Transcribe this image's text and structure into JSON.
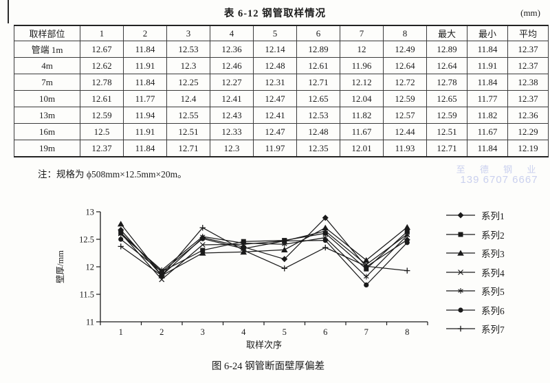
{
  "table": {
    "title": "表 6-12  钢管取样情况",
    "unit": "(mm)",
    "columns": [
      "取样部位",
      "1",
      "2",
      "3",
      "4",
      "5",
      "6",
      "7",
      "8",
      "最大",
      "最小",
      "平均"
    ],
    "rows": [
      {
        "label": "管端 1m",
        "values": [
          "12.67",
          "11.84",
          "12.53",
          "12.36",
          "12.14",
          "12.89",
          "12",
          "12.49",
          "12.89",
          "11.84",
          "12.37"
        ]
      },
      {
        "label": "4m",
        "values": [
          "12.62",
          "11.91",
          "12.3",
          "12.46",
          "12.48",
          "12.61",
          "11.96",
          "12.64",
          "12.64",
          "11.91",
          "12.37"
        ]
      },
      {
        "label": "7m",
        "values": [
          "12.78",
          "11.84",
          "12.25",
          "12.27",
          "12.31",
          "12.71",
          "12.12",
          "12.72",
          "12.78",
          "11.84",
          "12.38"
        ]
      },
      {
        "label": "10m",
        "values": [
          "12.61",
          "11.77",
          "12.4",
          "12.41",
          "12.47",
          "12.65",
          "12.04",
          "12.59",
          "12.65",
          "11.77",
          "12.37"
        ]
      },
      {
        "label": "13m",
        "values": [
          "12.59",
          "11.94",
          "12.55",
          "12.43",
          "12.41",
          "12.53",
          "11.82",
          "12.57",
          "12.59",
          "11.82",
          "12.36"
        ]
      },
      {
        "label": "16m",
        "values": [
          "12.5",
          "11.91",
          "12.51",
          "12.33",
          "12.47",
          "12.48",
          "11.67",
          "12.44",
          "12.51",
          "11.67",
          "12.29"
        ]
      },
      {
        "label": "19m",
        "values": [
          "12.37",
          "11.84",
          "12.71",
          "12.3",
          "11.97",
          "12.35",
          "12.01",
          "11.93",
          "12.71",
          "11.84",
          "12.19"
        ]
      }
    ],
    "note": "注：规格为 ϕ508mm×12.5mm×20m。"
  },
  "watermark": {
    "line1": "至 德 钢 业",
    "line2": "139 6707 6667",
    "color": "#b9c2ea"
  },
  "chart_data": {
    "type": "line",
    "x": [
      1,
      2,
      3,
      4,
      5,
      6,
      7,
      8
    ],
    "xlabel": "取样次序",
    "ylabel": "壁厚/mm",
    "ylim": [
      11,
      13
    ],
    "yticks": [
      11,
      11.5,
      12,
      12.5,
      13
    ],
    "grid": false,
    "legend_position": "right",
    "line_color": "#1a1a1a",
    "series": [
      {
        "name": "系列1",
        "marker": "diamond",
        "values": [
          12.67,
          11.84,
          12.53,
          12.36,
          12.14,
          12.89,
          12.0,
          12.49
        ]
      },
      {
        "name": "系列2",
        "marker": "square",
        "values": [
          12.62,
          11.91,
          12.3,
          12.46,
          12.48,
          12.61,
          11.96,
          12.64
        ]
      },
      {
        "name": "系列3",
        "marker": "triangle",
        "values": [
          12.78,
          11.84,
          12.25,
          12.27,
          12.31,
          12.71,
          12.12,
          12.72
        ]
      },
      {
        "name": "系列4",
        "marker": "x",
        "values": [
          12.61,
          11.77,
          12.4,
          12.41,
          12.47,
          12.65,
          12.04,
          12.59
        ]
      },
      {
        "name": "系列5",
        "marker": "asterisk",
        "values": [
          12.59,
          11.94,
          12.55,
          12.43,
          12.41,
          12.53,
          11.82,
          12.57
        ]
      },
      {
        "name": "系列6",
        "marker": "circle",
        "values": [
          12.5,
          11.91,
          12.51,
          12.33,
          12.47,
          12.48,
          11.67,
          12.44
        ]
      },
      {
        "name": "系列7",
        "marker": "plus",
        "values": [
          12.37,
          11.84,
          12.71,
          12.3,
          11.97,
          12.35,
          12.01,
          11.93
        ]
      }
    ]
  },
  "figure": {
    "caption": "图 6-24  钢管断面壁厚偏差"
  }
}
